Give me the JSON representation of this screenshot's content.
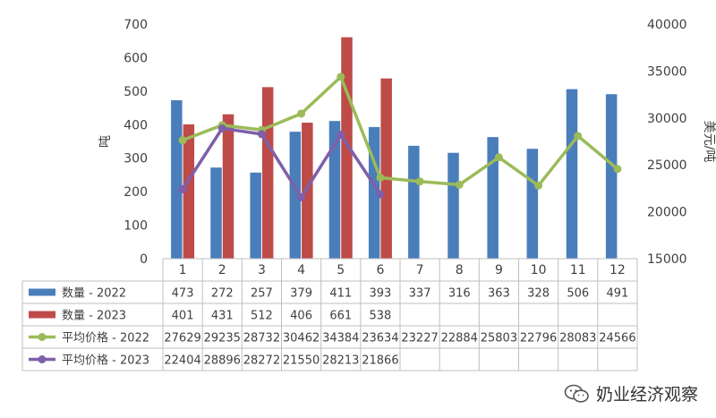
{
  "chart_data": {
    "type": "bar",
    "categories": [
      "1",
      "2",
      "3",
      "4",
      "5",
      "6",
      "7",
      "8",
      "9",
      "10",
      "11",
      "12"
    ],
    "series": [
      {
        "name": "数量 - 2022",
        "kind": "bar",
        "axis": "left",
        "color": "#4a7ebb",
        "values": [
          473,
          272,
          257,
          379,
          411,
          393,
          337,
          316,
          363,
          328,
          506,
          491
        ]
      },
      {
        "name": "数量 - 2023",
        "kind": "bar",
        "axis": "left",
        "color": "#be4b48",
        "values": [
          401,
          431,
          512,
          406,
          661,
          538,
          null,
          null,
          null,
          null,
          null,
          null
        ]
      },
      {
        "name": "平均价格 - 2022",
        "kind": "line",
        "axis": "right",
        "color": "#9bbb59",
        "values": [
          27629,
          29235,
          28732,
          30462,
          34384,
          23634,
          23227,
          22884,
          25803,
          22796,
          28083,
          24566
        ]
      },
      {
        "name": "平均价格 - 2023",
        "kind": "line",
        "axis": "right",
        "color": "#7f5fa9",
        "values": [
          22404,
          28896,
          28272,
          21550,
          28213,
          21866,
          null,
          null,
          null,
          null,
          null,
          null
        ]
      }
    ],
    "ylabel_left": "吨",
    "ylabel_right": "美元/吨",
    "ylim_left": [
      0,
      700
    ],
    "yticks_left": [
      "0",
      "100",
      "200",
      "300",
      "400",
      "500",
      "600",
      "700"
    ],
    "ylim_right": [
      15000,
      40000
    ],
    "yticks_right": [
      "15000",
      "20000",
      "25000",
      "30000",
      "35000",
      "40000"
    ],
    "data_table": true,
    "grid": false
  },
  "watermark": {
    "text": "奶业经济观察",
    "icon": "wechat-icon"
  }
}
